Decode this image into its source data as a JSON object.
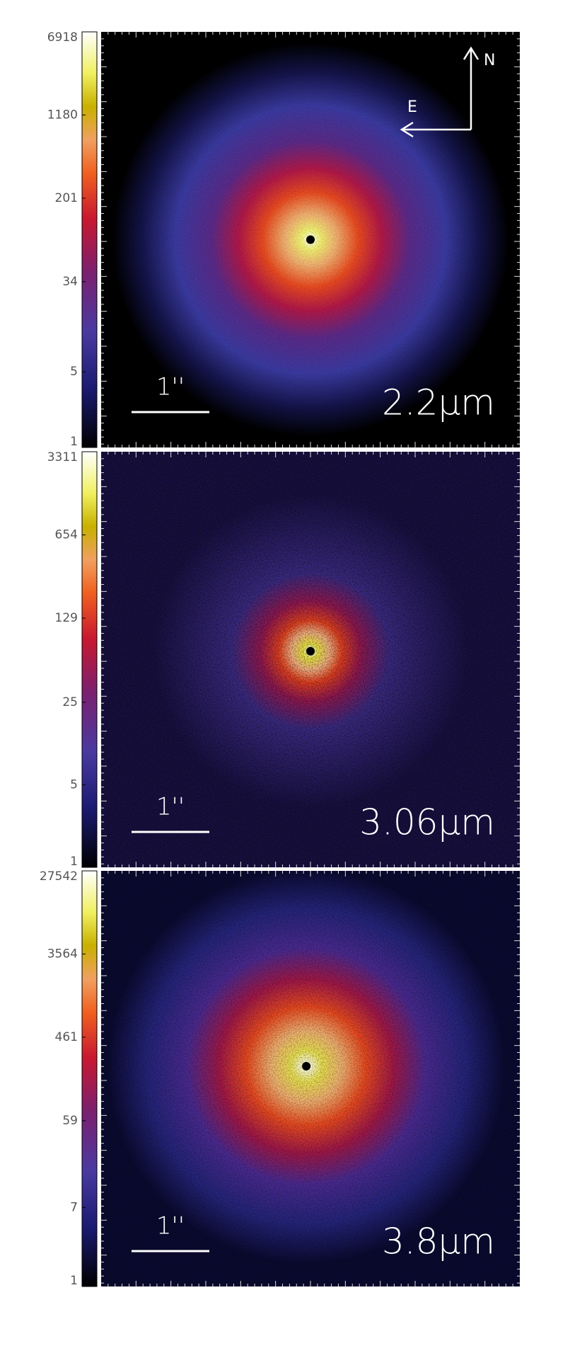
{
  "chart_data": [
    {
      "type": "image",
      "ylim": [
        1,
        6918
      ],
      "yticks": [
        1,
        5,
        34,
        201,
        1180,
        6918
      ],
      "log_scale": true,
      "label": "2.2μm",
      "scale_bar": "1''",
      "compass": [
        "N",
        "E"
      ]
    },
    {
      "type": "image",
      "ylim": [
        1,
        3311
      ],
      "yticks": [
        1,
        5,
        25,
        129,
        654,
        3311
      ],
      "log_scale": true,
      "label": "3.06μm",
      "scale_bar": "1''"
    },
    {
      "type": "image",
      "ylim": [
        1,
        27542
      ],
      "yticks": [
        1,
        7,
        59,
        461,
        3564,
        27542
      ],
      "log_scale": true,
      "label": "3.8μm",
      "scale_bar": "1''"
    }
  ]
}
